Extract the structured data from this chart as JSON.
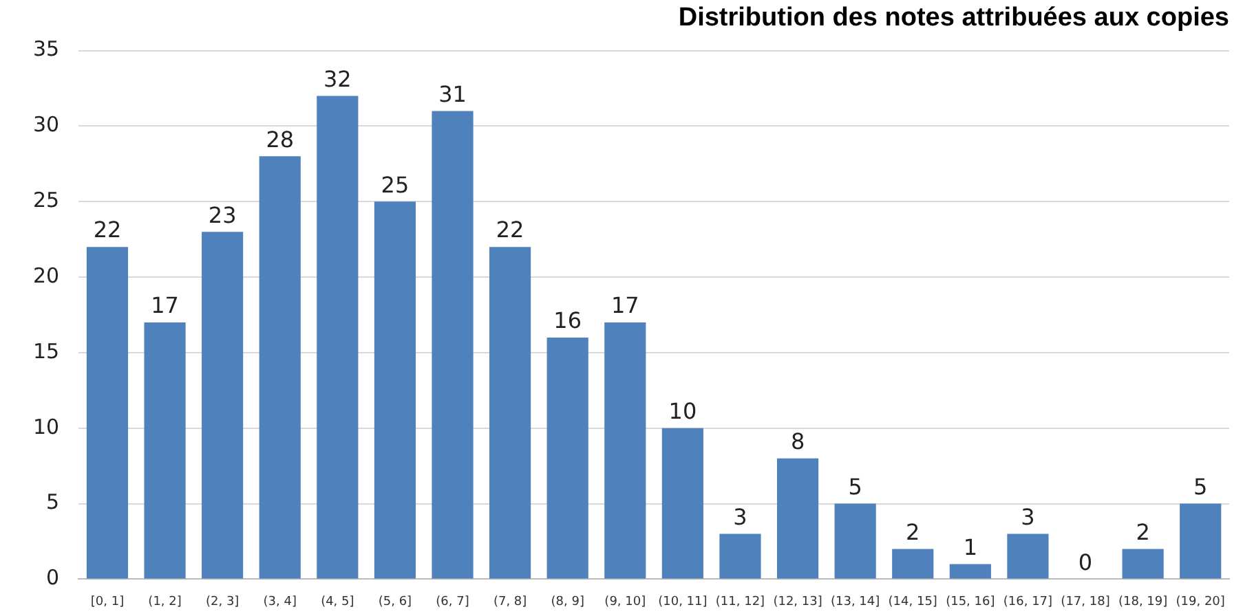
{
  "chart_data": {
    "type": "bar",
    "title": "Distribution des notes attribuées aux copies",
    "categories": [
      "[0, 1]",
      "(1, 2]",
      "(2, 3]",
      "(3, 4]",
      "(4, 5]",
      "(5, 6]",
      "(6, 7]",
      "(7, 8]",
      "(8, 9]",
      "(9, 10]",
      "(10, 11]",
      "(11, 12]",
      "(12, 13]",
      "(13, 14]",
      "(14, 15]",
      "(15, 16]",
      "(16, 17]",
      "(17, 18]",
      "(18, 19]",
      "(19, 20]"
    ],
    "values": [
      22,
      17,
      23,
      28,
      32,
      25,
      31,
      22,
      16,
      17,
      10,
      3,
      8,
      5,
      2,
      1,
      3,
      0,
      2,
      5
    ],
    "color": "#4f81bd",
    "ylim": [
      0,
      35
    ],
    "yticks": [
      0,
      5,
      10,
      15,
      20,
      25,
      30,
      35
    ],
    "grid": "y",
    "data_labels": true
  }
}
